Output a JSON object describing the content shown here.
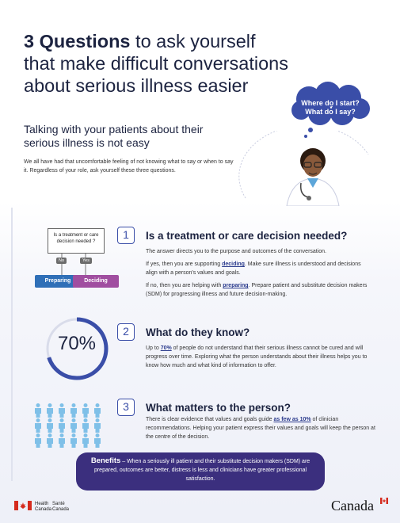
{
  "header": {
    "title_bold": "3 Questions",
    "title_rest_1": " to ask yourself",
    "title_line2": "that make difficult conversations",
    "title_line3": "about serious illness easier"
  },
  "bubble": {
    "line1": "Where do I start?",
    "line2": "What do I say?"
  },
  "subhead": "Talking with your patients about their serious illness is not easy",
  "intro": "We all have had that uncomfortable feeling of not knowing what to say or when to say it. Regardless of your role, ask yourself these three questions.",
  "q1": {
    "number": "1",
    "title": "Is a treatment or care decision needed?",
    "p1": "The answer directs you to the purpose and outcomes of the conversation.",
    "p2_a": "If yes, then you are supporting ",
    "p2_b": "deciding",
    "p2_c": ". Make sure illness is understood and decisions align with a person's values and goals.",
    "p3_a": "If no, then you are helping with ",
    "p3_b": "preparing",
    "p3_c": ". Prepare patient and substitute decision makers (SDM) for progressing illness and future decision-making.",
    "flow_question": "Is a treatment or care decision needed ?",
    "no_label": "No",
    "yes_label": "Yes",
    "preparing_label": "Preparing",
    "deciding_label": "Deciding"
  },
  "q2": {
    "number": "2",
    "title": "What do they know?",
    "p_a": "Up to ",
    "p_b": "70%",
    "p_c": " of people do not understand that their serious illness cannot be cured and will progress over time. Exploring what the person understands about their illness helps you to know how much and what kind of information to offer.",
    "percent_label": "70%",
    "percent_value": 70
  },
  "q3": {
    "number": "3",
    "title": "What matters to the person?",
    "p_a": "There is clear evidence that values and goals guide ",
    "p_b": "as few as 10%",
    "p_c": " of clinician recommendations. Helping your patient express their values and goals will keep the person at the centre of the decision.",
    "people_total": 20,
    "people_highlighted": 2
  },
  "benefits": {
    "label": "Benefits",
    "text": " – When a seriously ill patient and their substitute decision makers (SDM) are prepared, outcomes are better, distress is less and clinicians have greater professional satisfaction."
  },
  "footer": {
    "health_en": "Health",
    "canada_en": "Canada",
    "health_fr": "Santé",
    "canada_fr": "Canada",
    "wordmark": "Canada"
  },
  "colors": {
    "navy": "#1c2340",
    "accent": "#3a4ea8",
    "purple": "#3b2f7e",
    "light_blue": "#5da6d9",
    "pink": "#a04ea0"
  }
}
